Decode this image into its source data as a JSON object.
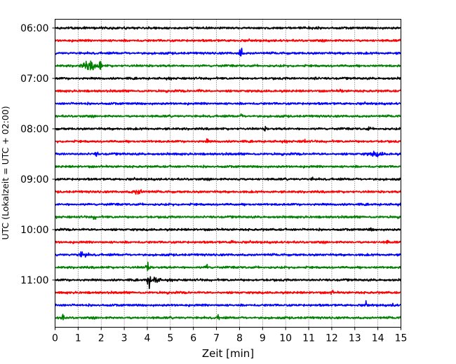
{
  "chart_data": {
    "type": "line",
    "title": "",
    "xlabel": "Zeit  [min]",
    "ylabel": "UTC (Lokalzeit = UTC + 02:00)",
    "xlim": [
      0,
      15
    ],
    "x_ticks": [
      "0",
      "1",
      "2",
      "3",
      "4",
      "5",
      "6",
      "7",
      "8",
      "9",
      "10",
      "11",
      "12",
      "13",
      "14",
      "15"
    ],
    "y_ticks": [
      "06:00",
      "07:00",
      "08:00",
      "09:00",
      "10:00",
      "11:00"
    ],
    "grid": "vertical dotted",
    "trace_interval_minutes": 15,
    "first_trace": "06:00",
    "colors": [
      "#000000",
      "#ff0000",
      "#0000ff",
      "#008000"
    ],
    "traces": [
      {
        "time": "06:00",
        "color": "#000000"
      },
      {
        "time": "06:15",
        "color": "#ff0000"
      },
      {
        "time": "06:30",
        "color": "#0000ff",
        "events": [
          {
            "t": 8.05,
            "amp": 1.1
          }
        ]
      },
      {
        "time": "06:45",
        "color": "#008000",
        "events": [
          {
            "t": 1.5,
            "amp": 0.55,
            "dur": 0.6
          },
          {
            "t": 1.95,
            "amp": 0.8
          }
        ]
      },
      {
        "time": "07:00",
        "color": "#000000",
        "events": [
          {
            "t": 11.3,
            "amp": 0.25
          }
        ]
      },
      {
        "time": "07:15",
        "color": "#ff0000",
        "events": [
          {
            "t": 6.3,
            "amp": 0.25
          },
          {
            "t": 12.4,
            "amp": 0.25
          }
        ]
      },
      {
        "time": "07:30",
        "color": "#0000ff"
      },
      {
        "time": "07:45",
        "color": "#008000",
        "events": [
          {
            "t": 8.1,
            "amp": 0.2
          }
        ]
      },
      {
        "time": "08:00",
        "color": "#000000",
        "events": [
          {
            "t": 9.1,
            "amp": 0.2
          },
          {
            "t": 13.6,
            "amp": 0.2
          }
        ]
      },
      {
        "time": "08:15",
        "color": "#ff0000",
        "events": [
          {
            "t": 6.6,
            "amp": 0.25
          },
          {
            "t": 10.8,
            "amp": 0.25
          }
        ]
      },
      {
        "time": "08:30",
        "color": "#0000ff",
        "events": [
          {
            "t": 1.8,
            "amp": 0.3
          },
          {
            "t": 13.9,
            "amp": 0.25,
            "dur": 0.6
          }
        ]
      },
      {
        "time": "08:45",
        "color": "#008000"
      },
      {
        "time": "09:00",
        "color": "#000000",
        "events": [
          {
            "t": 8.0,
            "amp": 0.2
          },
          {
            "t": 11.2,
            "amp": 0.2
          }
        ]
      },
      {
        "time": "09:15",
        "color": "#ff0000",
        "events": [
          {
            "t": 3.6,
            "amp": 0.25,
            "dur": 0.5
          }
        ]
      },
      {
        "time": "09:30",
        "color": "#0000ff"
      },
      {
        "time": "09:45",
        "color": "#008000",
        "events": [
          {
            "t": 1.7,
            "amp": 0.3
          }
        ]
      },
      {
        "time": "10:00",
        "color": "#000000",
        "events": [
          {
            "t": 13.7,
            "amp": 0.2
          }
        ]
      },
      {
        "time": "10:15",
        "color": "#ff0000",
        "events": [
          {
            "t": 7.7,
            "amp": 0.3
          },
          {
            "t": 14.4,
            "amp": 0.2
          }
        ]
      },
      {
        "time": "10:30",
        "color": "#0000ff",
        "events": [
          {
            "t": 1.2,
            "amp": 0.3,
            "dur": 0.4
          }
        ]
      },
      {
        "time": "10:45",
        "color": "#008000",
        "events": [
          {
            "t": 4.0,
            "amp": 0.9
          },
          {
            "t": 6.6,
            "amp": 0.5
          }
        ]
      },
      {
        "time": "11:00",
        "color": "#000000",
        "events": [
          {
            "t": 4.05,
            "amp": 1.1
          },
          {
            "t": 4.3,
            "amp": 0.4,
            "dur": 0.4
          }
        ]
      },
      {
        "time": "11:15",
        "color": "#ff0000",
        "events": [
          {
            "t": 12.0,
            "amp": 0.3
          }
        ]
      },
      {
        "time": "11:30",
        "color": "#0000ff",
        "events": [
          {
            "t": 13.5,
            "amp": 0.3
          },
          {
            "t": 14.7,
            "amp": 0.3
          }
        ]
      },
      {
        "time": "11:45",
        "color": "#008000",
        "events": [
          {
            "t": 0.3,
            "amp": 0.8
          },
          {
            "t": 7.1,
            "amp": 0.35
          }
        ]
      }
    ]
  }
}
